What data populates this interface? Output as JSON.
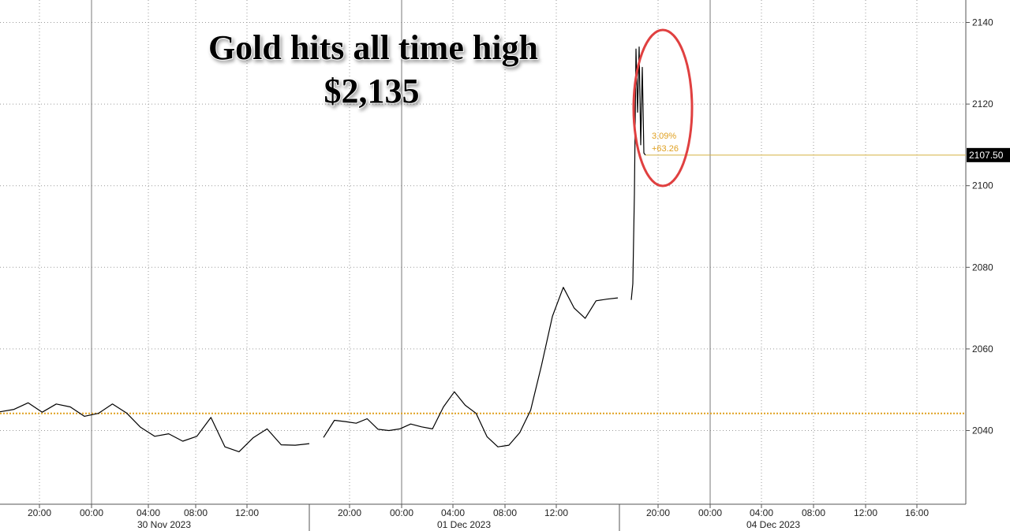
{
  "chart_data": {
    "type": "line",
    "title": "Gold hits all time high",
    "subtitle": "$2,135",
    "xlabel": "",
    "ylabel": "",
    "ylim": [
      2024,
      2142
    ],
    "y_ticks": [
      "2140",
      "2120",
      "2100",
      "2080",
      "2060",
      "2040"
    ],
    "x_time_labels": [
      "20:00",
      "00:00",
      "04:00",
      "08:00",
      "12:00",
      "20:00",
      "00:00",
      "04:00",
      "08:00",
      "12:00",
      "20:00",
      "00:00",
      "04:00",
      "08:00",
      "12:00",
      "16:00"
    ],
    "x_date_labels": [
      "30 Nov 2023",
      "01 Dec 2023",
      "04 Dec 2023"
    ],
    "reference_level": 2044.2,
    "last_value_label": "2107.50",
    "last_value": 2107.5,
    "change_pct_label": "3.09%",
    "change_abs_label": "+63.26",
    "series": [
      {
        "name": "",
        "values": [
          2044.6,
          2045.2,
          2046.8,
          2044.5,
          2046.5,
          2045.8,
          2043.5,
          2044.2,
          2046.5,
          2044.3,
          2040.8,
          2038.6,
          2039.2,
          2037.4,
          2038.6,
          2043.2,
          2036.0,
          2034.8,
          2038.2,
          2040.4,
          2036.5,
          2036.4,
          2036.8,
          2038.3,
          2042.5,
          2042.2,
          2041.8,
          2042.9,
          2040.3,
          2040.0,
          2040.4,
          2041.6,
          2040.9,
          2040.4,
          2045.8,
          2049.5,
          2046.2,
          2044.2,
          2038.5,
          2036.0,
          2036.4,
          2039.5,
          2045.0,
          2056.0,
          2068.0,
          2075.1,
          2070.0,
          2067.5,
          2071.8,
          2072.2,
          2072.5,
          2072.0,
          2076.0,
          2098.0,
          2133.5,
          2118.0,
          2134.0,
          2110.0,
          2129.0,
          2108.0,
          2107.5
        ]
      }
    ]
  },
  "callout": {
    "color": "#e04040"
  },
  "colors": {
    "line": "#000000",
    "reference": "#e0a020",
    "last_value_line": "#d4b040",
    "grid": "#9a9a9a"
  }
}
